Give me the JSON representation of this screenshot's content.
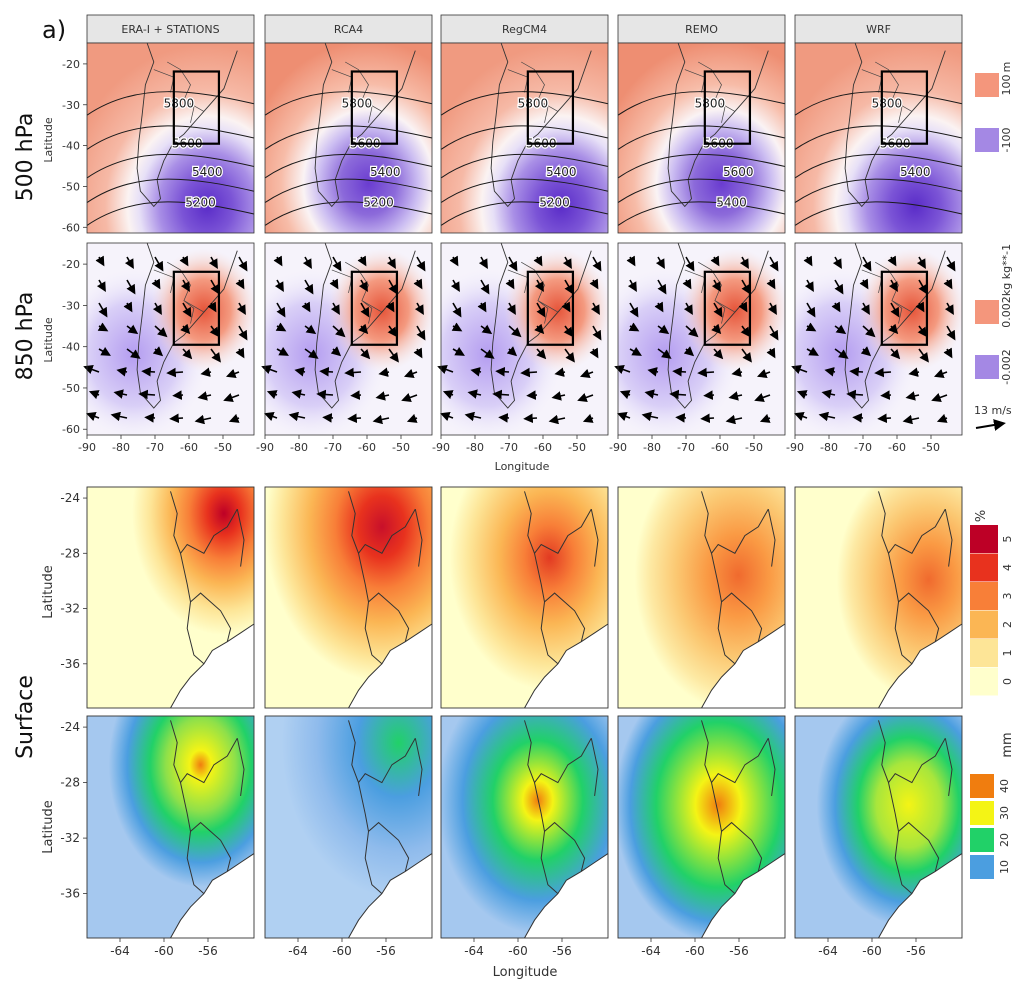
{
  "panel_tag": "a)",
  "models": [
    "ERA-I + STATIONS",
    "RCA4",
    "RegCM4",
    "REMO",
    "WRF"
  ],
  "rows": {
    "r500": "500 hPa",
    "r850": "850 hPa",
    "surface": "Surface"
  },
  "axes": {
    "upper": {
      "ylabel": "Latitude",
      "xlabel": "Longitude",
      "yticks": [
        "-20",
        "-30",
        "-40",
        "-50",
        "-60"
      ],
      "xticks": [
        "-90",
        "-80",
        "-70",
        "-60",
        "-50"
      ]
    },
    "lower": {
      "ylabel": "Latitude",
      "xlabel": "Longitude",
      "yticks": [
        "-24",
        "-28",
        "-32",
        "-36"
      ],
      "xticks": [
        "-64",
        "-60",
        "-56"
      ]
    }
  },
  "contour_labels": {
    "p0": [
      "5800",
      "5600",
      "5400",
      "5200"
    ],
    "p1": [
      "5800",
      "5600",
      "5400",
      "5200"
    ],
    "p2": [
      "5800",
      "5600",
      "5400",
      "5200"
    ],
    "p3": [
      "5800",
      "5600",
      "5600",
      "5400"
    ],
    "p4": [
      "5800",
      "5600",
      "5400"
    ]
  },
  "legends": {
    "z500": {
      "unit": "m",
      "labels": [
        "100",
        "-100"
      ],
      "colors": [
        "#f4967c",
        "#a488e4"
      ]
    },
    "q850": {
      "unit": "kg kg**-1",
      "labels": [
        "0.002",
        "-0.002"
      ],
      "colors": [
        "#f4967c",
        "#a488e4"
      ]
    },
    "wind": {
      "label": "13 m/s"
    },
    "pct": {
      "unit": "%",
      "labels": [
        "5",
        "4",
        "3",
        "2",
        "1",
        "0"
      ],
      "colors": [
        "#bd0026",
        "#e8321e",
        "#f87f38",
        "#fbb654",
        "#fde597",
        "#ffffcc"
      ]
    },
    "mm": {
      "unit": "mm",
      "labels": [
        "40",
        "30",
        "20",
        "10"
      ],
      "colors": [
        "#f07d0f",
        "#f4f415",
        "#21d168",
        "#4b9ee0"
      ]
    }
  }
}
